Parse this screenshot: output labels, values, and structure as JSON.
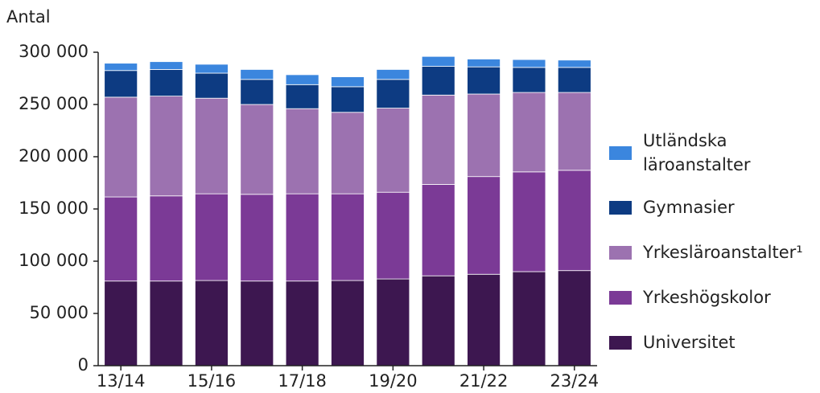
{
  "chart_data": {
    "type": "bar",
    "stacked": true,
    "ylabel": "Antal",
    "categories": [
      "13/14",
      null,
      "15/16",
      null,
      "17/18",
      null,
      "19/20",
      null,
      "21/22",
      null,
      "23/24"
    ],
    "series": [
      {
        "name": "Universitet",
        "color": "#3d1750",
        "values": [
          81000,
          81000,
          81500,
          81000,
          81000,
          81500,
          83000,
          86000,
          87500,
          90000,
          91000
        ]
      },
      {
        "name": "Yrkeshögskolor",
        "color": "#7b3a96",
        "values": [
          80500,
          81500,
          83000,
          83000,
          83500,
          83000,
          83000,
          87500,
          93500,
          95500,
          96000
        ]
      },
      {
        "name": "Yrkesläroanstalter¹",
        "color": "#9c72b0",
        "values": [
          95500,
          95500,
          91500,
          86000,
          81500,
          78000,
          80500,
          85500,
          79000,
          76000,
          74500
        ]
      },
      {
        "name": "Gymnasier",
        "color": "#0d3b82",
        "values": [
          25500,
          25500,
          24000,
          24000,
          23000,
          24500,
          27500,
          27500,
          26000,
          24000,
          24000
        ]
      },
      {
        "name": "Utländska läroanstalter",
        "color": "#3b86de",
        "values": [
          7000,
          7500,
          8500,
          9500,
          9500,
          9500,
          9500,
          9500,
          7500,
          7500,
          7000
        ]
      }
    ],
    "ylim": [
      0,
      300000
    ],
    "yticks": [
      0,
      {
        "value": 50000,
        "label": "50 000"
      },
      {
        "value": 100000,
        "label": "100 000"
      },
      {
        "value": 150000,
        "label": "150 000"
      },
      {
        "value": 200000,
        "label": "200 000"
      },
      {
        "value": 250000,
        "label": "250 000"
      },
      {
        "value": 300000,
        "label": "300 000"
      }
    ],
    "grid": false,
    "legend": "right"
  }
}
